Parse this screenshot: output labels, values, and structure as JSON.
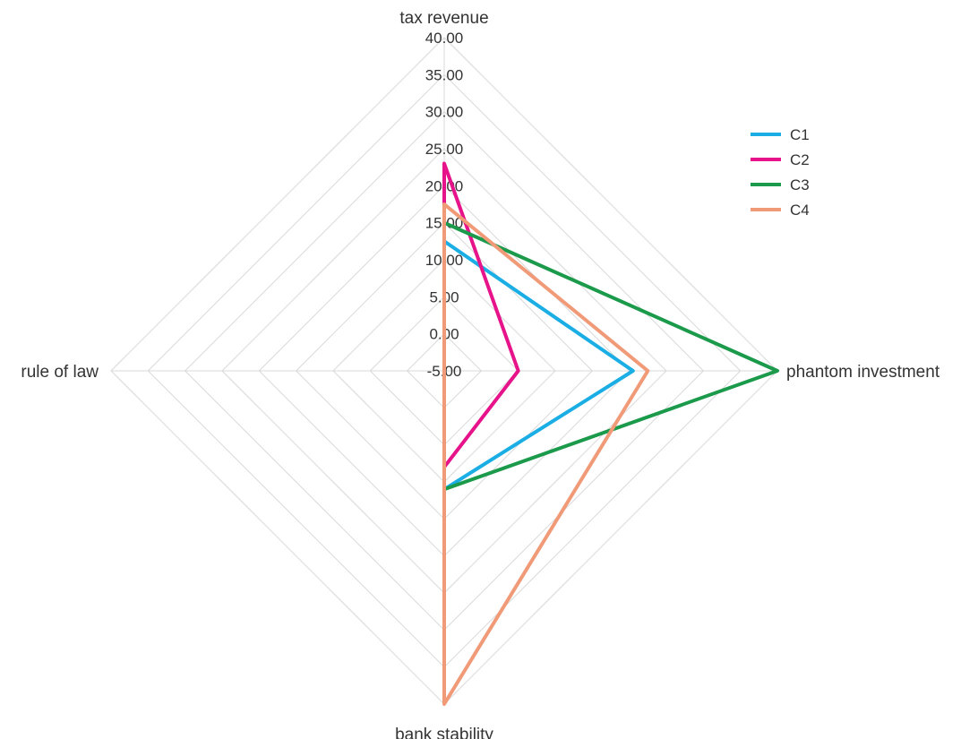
{
  "chart_data": {
    "type": "radar",
    "axes": [
      "tax revenue",
      "phantom investment",
      "bank stability",
      "rule of law"
    ],
    "rmin": -5,
    "rmax": 40,
    "ticks": [
      -5,
      0,
      5,
      10,
      15,
      20,
      25,
      30,
      35,
      40
    ],
    "tick_labels": [
      "-5.00",
      "0.00",
      "5.00",
      "10.00",
      "15.00",
      "20.00",
      "25.00",
      "30.00",
      "35.00",
      "40.00"
    ],
    "grid": true,
    "legend_position": "top-right",
    "series": [
      {
        "name": "C1",
        "color": "#1aaee5",
        "values": [
          12.5,
          20.5,
          11,
          -5
        ]
      },
      {
        "name": "C2",
        "color": "#e6138a",
        "values": [
          23,
          5,
          8,
          -5
        ]
      },
      {
        "name": "C3",
        "color": "#1a9a4a",
        "values": [
          15,
          40,
          11,
          -5
        ]
      },
      {
        "name": "C4",
        "color": "#f09a78",
        "values": [
          17.5,
          22.5,
          40,
          -5
        ]
      }
    ]
  }
}
